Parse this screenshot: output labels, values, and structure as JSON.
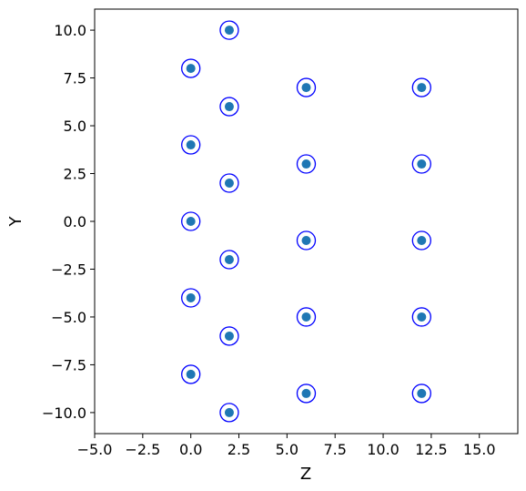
{
  "chart_data": {
    "type": "scatter",
    "title": "",
    "xlabel": "Z",
    "ylabel": "Y",
    "xlim": [
      -5.0,
      17.0
    ],
    "ylim": [
      -11.1,
      11.1
    ],
    "xticks": [
      -5.0,
      -2.5,
      0.0,
      2.5,
      5.0,
      7.5,
      10.0,
      12.5,
      15.0
    ],
    "xtick_labels": [
      "−5.0",
      "−2.5",
      "0.0",
      "2.5",
      "5.0",
      "7.5",
      "10.0",
      "12.5",
      "15.0"
    ],
    "yticks": [
      10.0,
      7.5,
      5.0,
      2.5,
      0.0,
      -2.5,
      -5.0,
      -7.5,
      -10.0
    ],
    "ytick_labels": [
      "10.0",
      "7.5",
      "5.0",
      "2.5",
      "0.0",
      "−2.5",
      "−5.0",
      "−7.5",
      "−10.0"
    ],
    "grid": false,
    "series": [
      {
        "marker": "filled-dot",
        "color": "#1f77b4",
        "points": [
          {
            "x": 2,
            "y": 10
          },
          {
            "x": 0,
            "y": 8
          },
          {
            "x": 6,
            "y": 7
          },
          {
            "x": 12,
            "y": 7
          },
          {
            "x": 2,
            "y": 6
          },
          {
            "x": 0,
            "y": 4
          },
          {
            "x": 6,
            "y": 3
          },
          {
            "x": 12,
            "y": 3
          },
          {
            "x": 2,
            "y": 2
          },
          {
            "x": 0,
            "y": 0
          },
          {
            "x": 6,
            "y": -1
          },
          {
            "x": 12,
            "y": -1
          },
          {
            "x": 2,
            "y": -2
          },
          {
            "x": 0,
            "y": -4
          },
          {
            "x": 6,
            "y": -5
          },
          {
            "x": 12,
            "y": -5
          },
          {
            "x": 2,
            "y": -6
          },
          {
            "x": 0,
            "y": -8
          },
          {
            "x": 6,
            "y": -9
          },
          {
            "x": 12,
            "y": -9
          },
          {
            "x": 2,
            "y": -10
          }
        ]
      },
      {
        "marker": "open-circle",
        "color": "#0000ff",
        "points": [
          {
            "x": 2,
            "y": 10
          },
          {
            "x": 0,
            "y": 8
          },
          {
            "x": 6,
            "y": 7
          },
          {
            "x": 12,
            "y": 7
          },
          {
            "x": 2,
            "y": 6
          },
          {
            "x": 0,
            "y": 4
          },
          {
            "x": 6,
            "y": 3
          },
          {
            "x": 12,
            "y": 3
          },
          {
            "x": 2,
            "y": 2
          },
          {
            "x": 0,
            "y": 0
          },
          {
            "x": 6,
            "y": -1
          },
          {
            "x": 12,
            "y": -1
          },
          {
            "x": 2,
            "y": -2
          },
          {
            "x": 0,
            "y": -4
          },
          {
            "x": 6,
            "y": -5
          },
          {
            "x": 12,
            "y": -5
          },
          {
            "x": 2,
            "y": -6
          },
          {
            "x": 0,
            "y": -8
          },
          {
            "x": 6,
            "y": -9
          },
          {
            "x": 12,
            "y": -9
          },
          {
            "x": 2,
            "y": -10
          }
        ]
      }
    ]
  }
}
